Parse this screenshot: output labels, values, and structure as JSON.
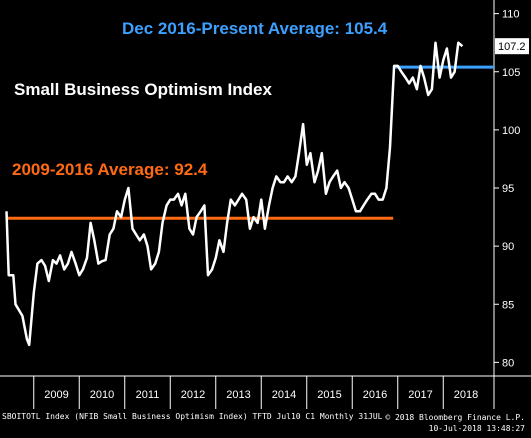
{
  "chart_data": {
    "type": "line",
    "title": "Small Business Optimism Index",
    "ylim": [
      79,
      111
    ],
    "y_ticks": [
      80,
      85,
      90,
      95,
      100,
      105,
      110
    ],
    "x_labels": [
      "2009",
      "2010",
      "2011",
      "2012",
      "2013",
      "2014",
      "2015",
      "2016",
      "2017",
      "2018"
    ],
    "grid": false,
    "line_color": "#ffffff",
    "series": [
      {
        "values": [
          [
            2008.4,
            93.0
          ],
          [
            2008.45,
            87.5
          ],
          [
            2008.55,
            87.5
          ],
          [
            2008.6,
            85.0
          ],
          [
            2008.75,
            84.0
          ],
          [
            2008.85,
            82.0
          ],
          [
            2008.9,
            81.5
          ],
          [
            2009.0,
            86.0
          ],
          [
            2009.08,
            88.5
          ],
          [
            2009.17,
            88.8
          ],
          [
            2009.25,
            88.3
          ],
          [
            2009.33,
            87.0
          ],
          [
            2009.42,
            88.8
          ],
          [
            2009.5,
            88.5
          ],
          [
            2009.58,
            89.2
          ],
          [
            2009.67,
            88.0
          ],
          [
            2009.75,
            88.5
          ],
          [
            2009.83,
            89.5
          ],
          [
            2009.92,
            88.5
          ],
          [
            2010.0,
            87.5
          ],
          [
            2010.08,
            88.0
          ],
          [
            2010.17,
            89.0
          ],
          [
            2010.25,
            92.0
          ],
          [
            2010.33,
            90.5
          ],
          [
            2010.42,
            88.5
          ],
          [
            2010.5,
            88.7
          ],
          [
            2010.58,
            88.8
          ],
          [
            2010.67,
            91.0
          ],
          [
            2010.75,
            91.5
          ],
          [
            2010.83,
            93.0
          ],
          [
            2010.92,
            92.5
          ],
          [
            2011.0,
            94.0
          ],
          [
            2011.08,
            95.0
          ],
          [
            2011.17,
            91.5
          ],
          [
            2011.25,
            91.0
          ],
          [
            2011.33,
            90.5
          ],
          [
            2011.42,
            91.0
          ],
          [
            2011.5,
            90.0
          ],
          [
            2011.58,
            88.0
          ],
          [
            2011.67,
            88.5
          ],
          [
            2011.75,
            89.5
          ],
          [
            2011.83,
            92.0
          ],
          [
            2011.92,
            93.5
          ],
          [
            2012.0,
            94.0
          ],
          [
            2012.08,
            94.0
          ],
          [
            2012.17,
            94.5
          ],
          [
            2012.25,
            93.5
          ],
          [
            2012.33,
            94.5
          ],
          [
            2012.42,
            91.5
          ],
          [
            2012.5,
            91.0
          ],
          [
            2012.58,
            92.5
          ],
          [
            2012.67,
            93.0
          ],
          [
            2012.75,
            93.5
          ],
          [
            2012.83,
            87.5
          ],
          [
            2012.92,
            88.0
          ],
          [
            2013.0,
            89.0
          ],
          [
            2013.08,
            90.5
          ],
          [
            2013.17,
            89.5
          ],
          [
            2013.25,
            92.0
          ],
          [
            2013.33,
            94.0
          ],
          [
            2013.42,
            93.5
          ],
          [
            2013.5,
            94.0
          ],
          [
            2013.58,
            94.5
          ],
          [
            2013.67,
            94.0
          ],
          [
            2013.75,
            91.5
          ],
          [
            2013.83,
            92.5
          ],
          [
            2013.92,
            92.0
          ],
          [
            2014.0,
            94.0
          ],
          [
            2014.08,
            91.5
          ],
          [
            2014.17,
            93.5
          ],
          [
            2014.25,
            95.0
          ],
          [
            2014.33,
            96.0
          ],
          [
            2014.42,
            95.5
          ],
          [
            2014.5,
            95.5
          ],
          [
            2014.58,
            96.0
          ],
          [
            2014.67,
            95.5
          ],
          [
            2014.75,
            96.0
          ],
          [
            2014.83,
            98.0
          ],
          [
            2014.92,
            100.5
          ],
          [
            2015.0,
            97.0
          ],
          [
            2015.08,
            98.0
          ],
          [
            2015.17,
            95.5
          ],
          [
            2015.25,
            96.5
          ],
          [
            2015.33,
            98.0
          ],
          [
            2015.42,
            94.5
          ],
          [
            2015.5,
            95.5
          ],
          [
            2015.58,
            96.0
          ],
          [
            2015.67,
            96.5
          ],
          [
            2015.75,
            95.0
          ],
          [
            2015.83,
            95.5
          ],
          [
            2015.92,
            95.0
          ],
          [
            2016.0,
            94.0
          ],
          [
            2016.08,
            93.0
          ],
          [
            2016.17,
            93.0
          ],
          [
            2016.25,
            93.5
          ],
          [
            2016.33,
            94.0
          ],
          [
            2016.42,
            94.5
          ],
          [
            2016.5,
            94.5
          ],
          [
            2016.58,
            94.0
          ],
          [
            2016.67,
            94.0
          ],
          [
            2016.75,
            95.0
          ],
          [
            2016.83,
            98.5
          ],
          [
            2016.92,
            105.5
          ],
          [
            2017.0,
            105.5
          ],
          [
            2017.08,
            105.0
          ],
          [
            2017.17,
            104.5
          ],
          [
            2017.25,
            104.0
          ],
          [
            2017.33,
            104.5
          ],
          [
            2017.42,
            103.5
          ],
          [
            2017.5,
            105.5
          ],
          [
            2017.58,
            104.5
          ],
          [
            2017.67,
            103.0
          ],
          [
            2017.75,
            103.5
          ],
          [
            2017.83,
            107.5
          ],
          [
            2017.92,
            104.5
          ],
          [
            2018.0,
            106.0
          ],
          [
            2018.08,
            107.0
          ],
          [
            2018.17,
            104.5
          ],
          [
            2018.25,
            105.0
          ],
          [
            2018.33,
            107.5
          ],
          [
            2018.42,
            107.2
          ]
        ]
      }
    ],
    "reference_lines": [
      {
        "label": "2009-2016 Average: 92.4",
        "value": 92.4,
        "x_range": [
          2008.4,
          2016.9
        ],
        "color": "#ff6a13"
      },
      {
        "label": "Dec 2016-Present Average: 105.4",
        "value": 105.4,
        "x_range": [
          2016.9,
          2018.6
        ],
        "color": "#3ca0ff"
      }
    ],
    "last_value_tag": "107.2"
  },
  "footer": {
    "left": "SBOITOTL Index (NFIB Small Business Optimism Index) TFTD Jul10 C1  Monthly 31JUL",
    "right_line1": "© 2018 Bloomberg Finance L.P.",
    "right_line2": "10-Jul-2018 13:48:27"
  }
}
